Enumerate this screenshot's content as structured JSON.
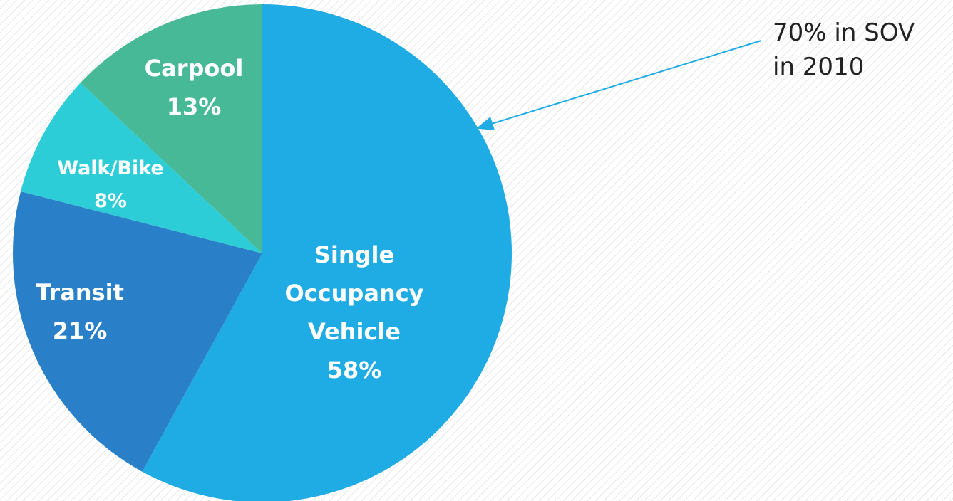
{
  "chart_data": {
    "type": "pie",
    "categories": [
      "Single Occupancy Vehicle",
      "Transit",
      "Walk/Bike",
      "Carpool"
    ],
    "values": [
      58,
      21,
      8,
      13
    ],
    "value_labels": [
      "58%",
      "21%",
      "8%",
      "13%"
    ],
    "colors": [
      "#1fabe3",
      "#2a80c8",
      "#2ccdd6",
      "#47b996"
    ],
    "annotation": "70% in SOV in 2010"
  }
}
